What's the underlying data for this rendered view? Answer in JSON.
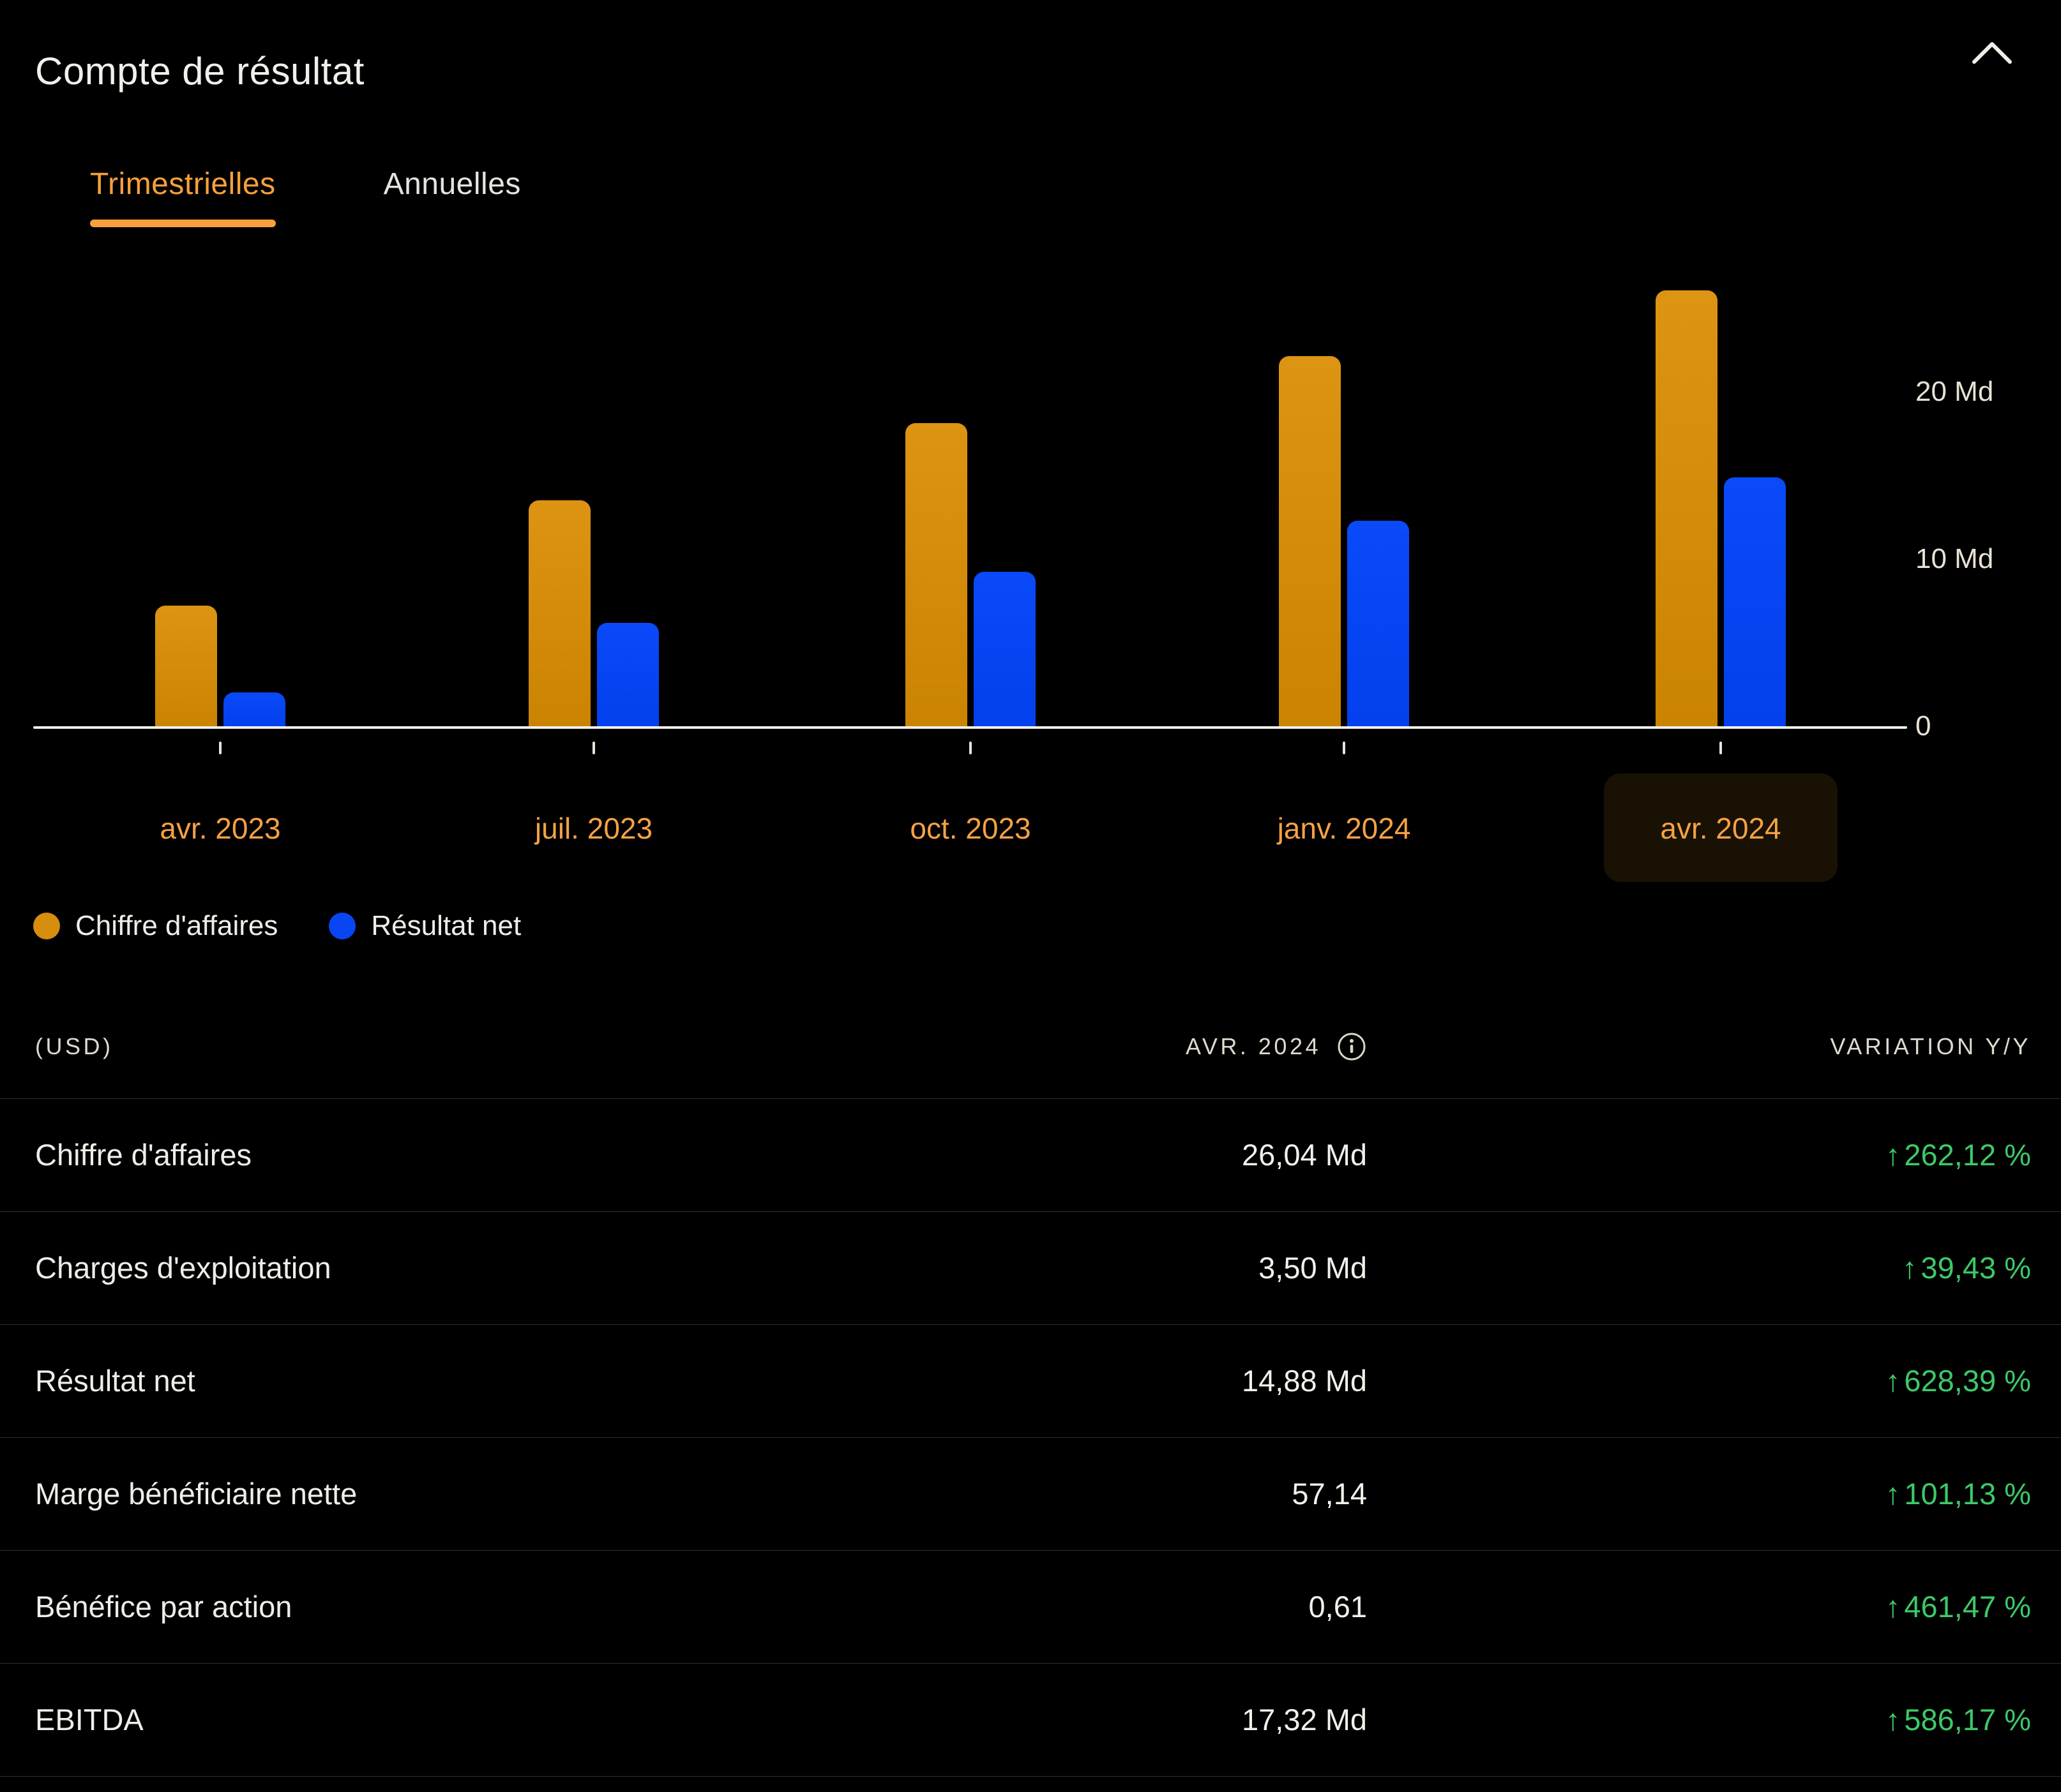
{
  "header": {
    "title": "Compte de résultat",
    "collapse_icon": "chevron-up-icon"
  },
  "tabs": [
    {
      "label": "Trimestrielles",
      "active": true
    },
    {
      "label": "Annuelles",
      "active": false
    }
  ],
  "chart_data": {
    "type": "bar",
    "categories": [
      "avr. 2023",
      "juil. 2023",
      "oct. 2023",
      "janv. 2024",
      "avr. 2024"
    ],
    "series": [
      {
        "name": "Chiffre d'affaires",
        "color": "#D68E0C",
        "values": [
          7.19,
          13.51,
          18.12,
          22.1,
          26.04
        ]
      },
      {
        "name": "Résultat net",
        "color": "#0846F4",
        "values": [
          2.04,
          6.19,
          9.24,
          12.29,
          14.88
        ]
      }
    ],
    "unit": "Md",
    "ylim": [
      0,
      27
    ],
    "y_ticks": [
      {
        "value": 0,
        "label": "0"
      },
      {
        "value": 10,
        "label": "10 Md"
      },
      {
        "value": 20,
        "label": "20 Md"
      }
    ],
    "highlighted_category": "avr. 2024",
    "grid": false,
    "legend_position": "bottom-left"
  },
  "table": {
    "currency_label": "(USD)",
    "period_label": "AVR. 2024",
    "info_icon": "info-icon",
    "variation_label": "VARIATION Y/Y",
    "up_arrow": "↑",
    "rows": [
      {
        "label": "Chiffre d'affaires",
        "value": "26,04 Md",
        "variation": "262,12 %",
        "direction": "up"
      },
      {
        "label": "Charges d'exploitation",
        "value": "3,50 Md",
        "variation": "39,43 %",
        "direction": "up"
      },
      {
        "label": "Résultat net",
        "value": "14,88 Md",
        "variation": "628,39 %",
        "direction": "up"
      },
      {
        "label": "Marge bénéficiaire nette",
        "value": "57,14",
        "variation": "101,13 %",
        "direction": "up"
      },
      {
        "label": "Bénéfice par action",
        "value": "0,61",
        "variation": "461,47 %",
        "direction": "up"
      },
      {
        "label": "EBITDA",
        "value": "17,32 Md",
        "variation": "586,17 %",
        "direction": "up"
      }
    ]
  },
  "colors": {
    "background": "#000000",
    "accent_orange": "#F7A03C",
    "bar_orange": "#D68E0C",
    "bar_blue": "#0846F4",
    "positive_green": "#3DC968",
    "axis_white": "#F4F1EA",
    "text_primary": "#F2F0EA",
    "text_muted": "#DFDACD",
    "divider": "#2F2E2C"
  }
}
